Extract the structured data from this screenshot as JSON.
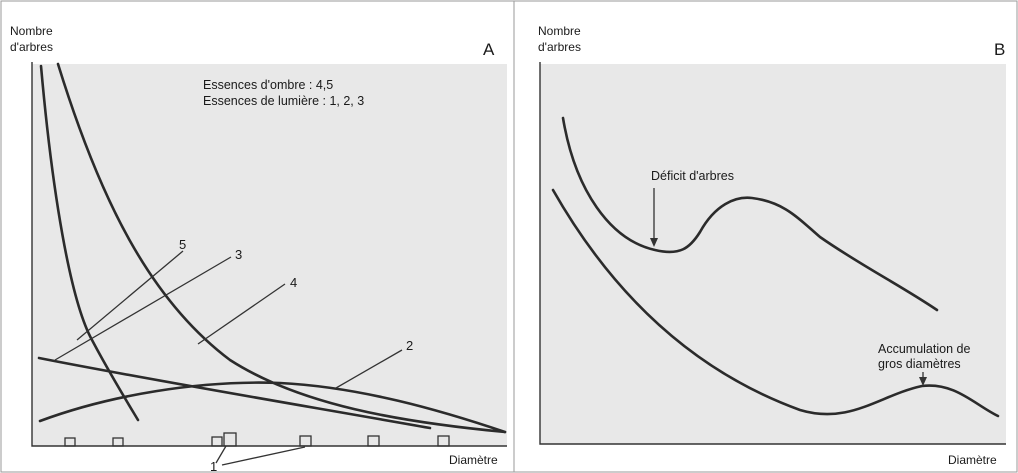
{
  "chart_data": [
    {
      "type": "line",
      "panel": "A",
      "ylabel": [
        "Nombre",
        "d'arbres"
      ],
      "xlabel": "Diamètre",
      "legend": [
        "Essences d'ombre : 4,5",
        "Essences de lumière : 1, 2, 3"
      ],
      "series": [
        {
          "name": "2",
          "shape": "bell"
        },
        {
          "name": "3",
          "shape": "slow decreasing"
        },
        {
          "name": "4",
          "shape": "decreasing exponential"
        },
        {
          "name": "5",
          "shape": "steep decreasing"
        }
      ],
      "markers": {
        "label": "1",
        "description": "souches le long de l'axe des diamètres"
      }
    },
    {
      "type": "line",
      "panel": "B",
      "ylabel": [
        "Nombre",
        "d'arbres"
      ],
      "xlabel": "Diamètre",
      "series": [
        {
          "shape": "decreasing with dip and bump"
        },
        {
          "shape": "decreasing with late bump"
        }
      ],
      "annotations": [
        "Déficit d'arbres",
        "Accumulation de",
        "gros diamètres"
      ]
    }
  ],
  "colors": {
    "panel_bg": "#e8e8e8",
    "curve": "#2b2b2b",
    "frame": "#9a9a9a"
  }
}
